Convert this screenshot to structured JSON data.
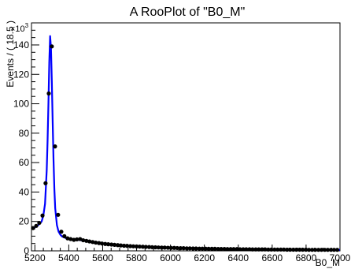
{
  "chart_data": {
    "type": "scatter",
    "title": "A RooPlot of \"B0_M\"",
    "xlabel": "B0_M",
    "ylabel": "Events / ( 18.5 )",
    "y_exponent_label": "×10",
    "y_exponent_power": "3",
    "xlim": [
      5180,
      7000
    ],
    "ylim": [
      0,
      155
    ],
    "x_ticks": [
      5200,
      5400,
      5600,
      5800,
      6000,
      6200,
      6400,
      6600,
      6800,
      7000
    ],
    "x_tick_labels": [
      "5200",
      "5400",
      "5600",
      "5800",
      "6000",
      "6200",
      "6400",
      "6600",
      "6800",
      "7000"
    ],
    "y_ticks": [
      0,
      20,
      40,
      60,
      80,
      100,
      120,
      140
    ],
    "y_tick_labels": [
      "0",
      "20",
      "40",
      "60",
      "80",
      "100",
      "120",
      "140"
    ],
    "grid": false,
    "legend": "none",
    "colors": {
      "data": "#000000",
      "fit": "#0000ff",
      "axis": "#000000"
    },
    "series": [
      {
        "kind": "points",
        "x": [
          5189,
          5208,
          5226,
          5245,
          5263,
          5282,
          5300,
          5319,
          5337,
          5356,
          5374,
          5393,
          5411,
          5430,
          5448,
          5467,
          5485,
          5504,
          5522,
          5541,
          5559,
          5578,
          5596,
          5615,
          5633,
          5652,
          5670,
          5689,
          5707,
          5726,
          5744,
          5763,
          5781,
          5800,
          5818,
          5837,
          5855,
          5874,
          5892,
          5911,
          5929,
          5948,
          5966,
          5985,
          6003,
          6022,
          6040,
          6059,
          6077,
          6096,
          6114,
          6133,
          6151,
          6170,
          6188,
          6207,
          6225,
          6244,
          6262,
          6281,
          6299,
          6318,
          6336,
          6355,
          6373,
          6392,
          6410,
          6429,
          6447,
          6466,
          6484,
          6503,
          6521,
          6540,
          6558,
          6577,
          6595,
          6614,
          6632,
          6651,
          6669,
          6688,
          6706,
          6725,
          6743,
          6762,
          6780,
          6799,
          6817,
          6836,
          6854,
          6873,
          6891,
          6910,
          6928,
          6947,
          6965,
          6984
        ],
        "y": [
          15.5,
          17.0,
          19.0,
          24.0,
          46.0,
          107.0,
          139.0,
          71.0,
          24.5,
          13.0,
          10.0,
          8.5,
          8.0,
          7.5,
          7.8,
          8.0,
          7.2,
          6.8,
          6.4,
          6.0,
          5.6,
          5.3,
          5.0,
          4.7,
          4.5,
          4.3,
          4.1,
          3.9,
          3.7,
          3.5,
          3.4,
          3.2,
          3.1,
          3.0,
          2.9,
          2.8,
          2.7,
          2.6,
          2.5,
          2.4,
          2.3,
          2.2,
          2.2,
          2.1,
          2.0,
          2.0,
          1.9,
          1.8,
          1.8,
          1.7,
          1.7,
          1.6,
          1.6,
          1.5,
          1.5,
          1.5,
          1.4,
          1.4,
          1.4,
          1.3,
          1.3,
          1.3,
          1.2,
          1.2,
          1.2,
          1.2,
          1.1,
          1.1,
          1.1,
          1.1,
          1.0,
          1.0,
          1.0,
          1.0,
          1.0,
          0.9,
          0.9,
          0.9,
          0.9,
          0.9,
          0.9,
          0.8,
          0.8,
          0.8,
          0.8,
          0.8,
          0.8,
          0.8,
          0.7,
          0.7,
          0.7,
          0.7,
          0.7,
          0.7,
          0.7,
          0.7,
          0.7,
          0.7
        ]
      },
      {
        "kind": "curve",
        "x": [
          5180,
          5200,
          5220,
          5240,
          5250,
          5260,
          5270,
          5275,
          5280,
          5285,
          5290,
          5295,
          5300,
          5305,
          5310,
          5315,
          5320,
          5330,
          5340,
          5350,
          5360,
          5380,
          5400,
          5420,
          5440,
          5460,
          5480,
          5500,
          5550,
          5600,
          5650,
          5700,
          5800,
          5900,
          6000,
          6100,
          6200,
          6300,
          6400,
          6500,
          6600,
          6700,
          6800,
          6900,
          7000
        ],
        "y": [
          15.0,
          16.0,
          17.5,
          20.0,
          24.0,
          32.0,
          55.0,
          75.0,
          100.0,
          128.0,
          146.0,
          138.0,
          115.0,
          88.0,
          62.0,
          42.0,
          29.0,
          17.5,
          13.0,
          11.0,
          9.8,
          8.8,
          8.2,
          7.8,
          7.6,
          7.4,
          7.1,
          6.7,
          5.8,
          5.0,
          4.4,
          3.9,
          3.1,
          2.6,
          2.2,
          1.9,
          1.7,
          1.5,
          1.3,
          1.2,
          1.1,
          1.0,
          0.9,
          0.8,
          0.7
        ]
      }
    ]
  }
}
